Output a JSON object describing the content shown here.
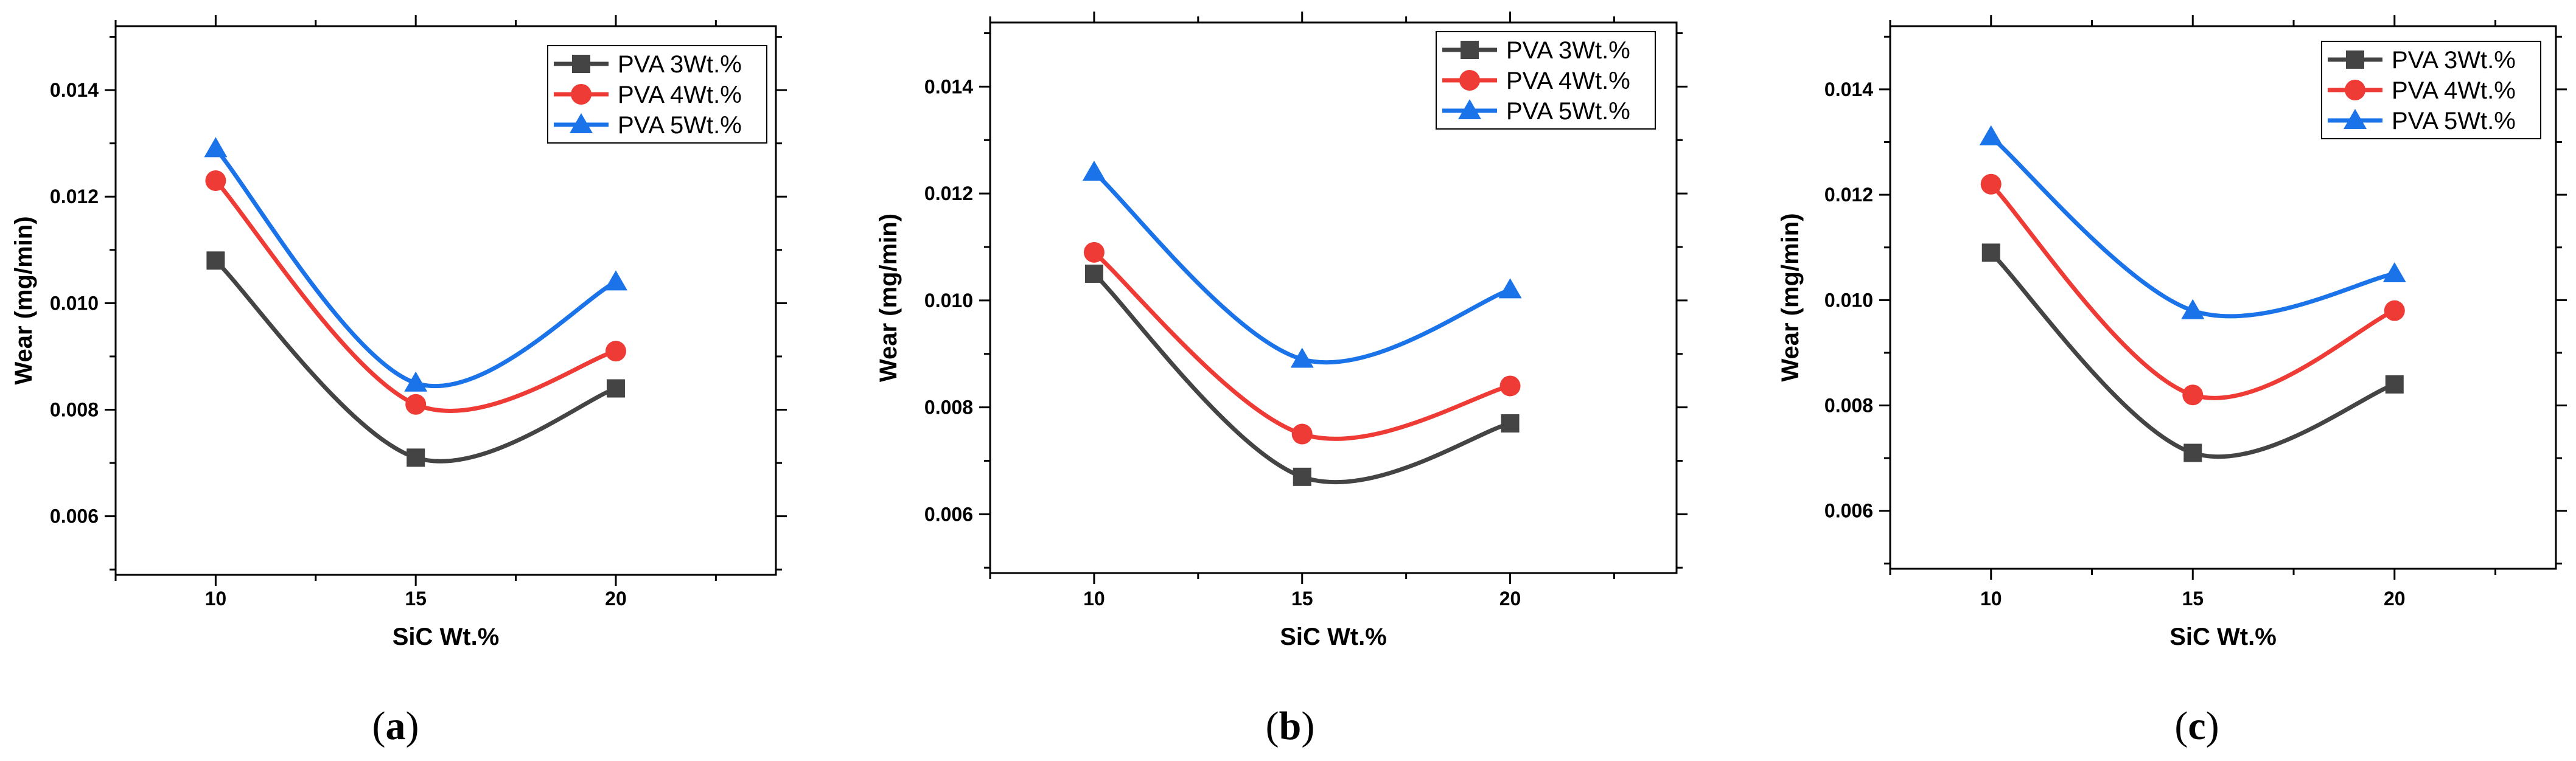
{
  "figure": {
    "colors": {
      "PVA 3Wt.%": "#444444",
      "PVA 4Wt.%": "#ef3b36",
      "PVA 5Wt.%": "#1a73e8"
    },
    "markers": {
      "PVA 3Wt.%": "square",
      "PVA 4Wt.%": "circle",
      "PVA 5Wt.%": "triangle"
    }
  },
  "chart_data": [
    {
      "type": "line",
      "caption": {
        "open": "(",
        "letter": "a",
        "close": ")"
      },
      "xlabel": "SiC Wt.%",
      "ylabel": "Wear (mg/min)",
      "x": [
        10,
        15,
        20
      ],
      "x_ticks": [
        "10",
        "15",
        "20"
      ],
      "xlim": [
        7.5,
        24
      ],
      "ylim": [
        0.0049,
        0.0152
      ],
      "y_ticks": [
        "0.006",
        "0.008",
        "0.010",
        "0.012",
        "0.014"
      ],
      "smoothed": true,
      "grid": false,
      "legend_position": "top-right",
      "series": [
        {
          "name": "PVA 3Wt.%",
          "values": [
            0.0108,
            0.0071,
            0.0084
          ]
        },
        {
          "name": "PVA 4Wt.%",
          "values": [
            0.0123,
            0.0081,
            0.0091
          ]
        },
        {
          "name": "PVA 5Wt.%",
          "values": [
            0.0129,
            0.0085,
            0.0104
          ]
        }
      ]
    },
    {
      "type": "line",
      "caption": {
        "open": "(",
        "letter": "b",
        "close": ")"
      },
      "xlabel": "SiC Wt.%",
      "ylabel": "Wear (mg/min)",
      "x": [
        10,
        15,
        20
      ],
      "x_ticks": [
        "10",
        "15",
        "20"
      ],
      "xlim": [
        7.5,
        24
      ],
      "ylim": [
        0.0049,
        0.0152
      ],
      "y_ticks": [
        "0.006",
        "0.008",
        "0.010",
        "0.012",
        "0.014"
      ],
      "smoothed": true,
      "grid": false,
      "legend_position": "top-right",
      "series": [
        {
          "name": "PVA 3Wt.%",
          "values": [
            0.0105,
            0.0067,
            0.0077
          ]
        },
        {
          "name": "PVA 4Wt.%",
          "values": [
            0.0109,
            0.0075,
            0.0084
          ]
        },
        {
          "name": "PVA 5Wt.%",
          "values": [
            0.0124,
            0.0089,
            0.0102
          ]
        }
      ]
    },
    {
      "type": "line",
      "caption": {
        "open": "(",
        "letter": "c",
        "close": ")"
      },
      "xlabel": "SiC Wt.%",
      "ylabel": "Wear (mg/min)",
      "x": [
        10,
        15,
        20
      ],
      "x_ticks": [
        "10",
        "15",
        "20"
      ],
      "xlim": [
        7.5,
        24
      ],
      "ylim": [
        0.0049,
        0.0152
      ],
      "y_ticks": [
        "0.006",
        "0.008",
        "0.010",
        "0.012",
        "0.014"
      ],
      "smoothed": true,
      "grid": false,
      "legend_position": "top-right",
      "series": [
        {
          "name": "PVA 3Wt.%",
          "values": [
            0.0109,
            0.0071,
            0.0084
          ]
        },
        {
          "name": "PVA 4Wt.%",
          "values": [
            0.0122,
            0.0082,
            0.0098
          ]
        },
        {
          "name": "PVA 5Wt.%",
          "values": [
            0.0131,
            0.0098,
            0.0105
          ]
        }
      ]
    }
  ]
}
